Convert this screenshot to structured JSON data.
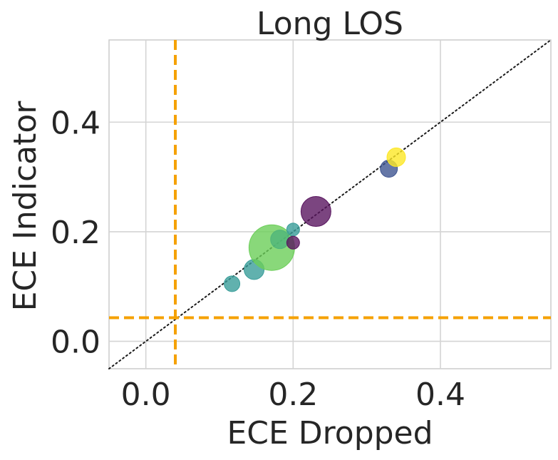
{
  "chart_data": {
    "type": "scatter",
    "title": "Long LOS",
    "xlabel": "ECE Dropped",
    "ylabel": "ECE Indicator",
    "xlim": [
      -0.05,
      0.55
    ],
    "ylim": [
      -0.05,
      0.55
    ],
    "x_ticks": [
      0.0,
      0.2,
      0.4
    ],
    "y_ticks": [
      0.0,
      0.2,
      0.4
    ],
    "x_tick_labels": [
      "0.0",
      "0.2",
      "0.4"
    ],
    "y_tick_labels": [
      "0.0",
      "0.2",
      "0.4"
    ],
    "grid": true,
    "reference_lines": {
      "diagonal": {
        "style": "dotted",
        "color": "#1a1a1a",
        "from": [
          -0.05,
          -0.05
        ],
        "to": [
          0.55,
          0.55
        ]
      },
      "vertical": {
        "x": 0.04,
        "style": "dashed",
        "color": "#f5a100"
      },
      "horizontal": {
        "y": 0.043,
        "style": "dashed",
        "color": "#f5a100"
      }
    },
    "points": [
      {
        "x": 0.117,
        "y": 0.105,
        "size": 11,
        "color": "#3a9e9a"
      },
      {
        "x": 0.147,
        "y": 0.131,
        "size": 14,
        "color": "#3a9e9a"
      },
      {
        "x": 0.171,
        "y": 0.171,
        "size": 32,
        "color": "#6cce59"
      },
      {
        "x": 0.182,
        "y": 0.186,
        "size": 13,
        "color": "#4fb57a"
      },
      {
        "x": 0.2,
        "y": 0.204,
        "size": 9,
        "color": "#3a9e9a"
      },
      {
        "x": 0.2,
        "y": 0.18,
        "size": 9,
        "color": "#5a1760"
      },
      {
        "x": 0.231,
        "y": 0.237,
        "size": 21,
        "color": "#5a1760"
      },
      {
        "x": 0.33,
        "y": 0.315,
        "size": 12,
        "color": "#3f5591"
      },
      {
        "x": 0.34,
        "y": 0.336,
        "size": 13,
        "color": "#fde725"
      }
    ]
  }
}
